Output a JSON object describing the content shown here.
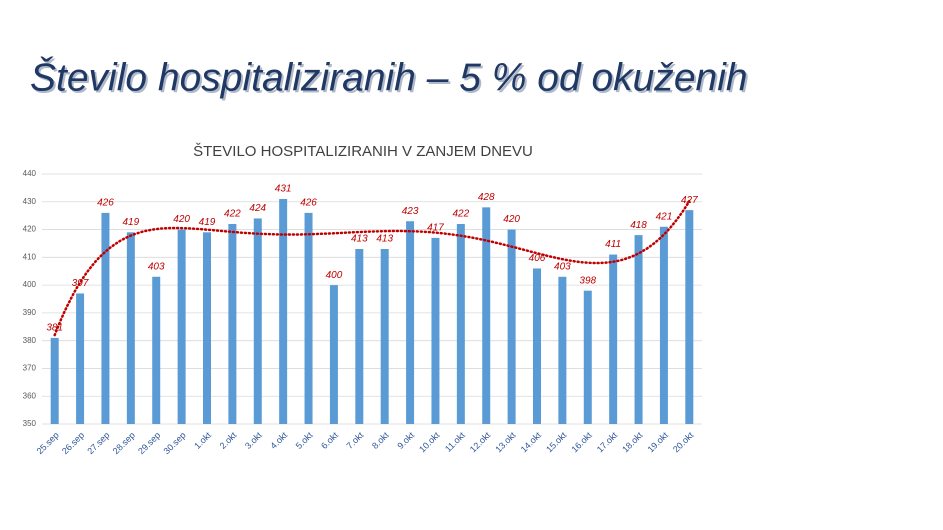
{
  "slide_title": "Število hospitaliziranih – 5 % od okuženih",
  "chart_data": {
    "type": "bar",
    "title": "ŠTEVILO HOSPITALIZIRANIH V ZANJEM DNEVU",
    "categories": [
      "25.sep",
      "26.sep",
      "27.sep",
      "28.sep",
      "29.sep",
      "30.sep",
      "1.okt",
      "2.okt",
      "3.okt",
      "4.okt",
      "5.okt",
      "6.okt",
      "7.okt",
      "8.okt",
      "9.okt",
      "10.okt",
      "11.okt",
      "12.okt",
      "13.okt",
      "14.okt",
      "15.okt",
      "16.okt",
      "17.okt",
      "18.okt",
      "19.okt",
      "20.okt"
    ],
    "values": [
      381,
      397,
      426,
      419,
      403,
      420,
      419,
      422,
      424,
      431,
      426,
      400,
      413,
      413,
      423,
      417,
      422,
      428,
      420,
      406,
      403,
      398,
      411,
      418,
      421,
      427
    ],
    "color": "#5b9bd5",
    "label_color": "#c00000",
    "ylim": [
      350,
      440
    ],
    "yticks": [
      350,
      360,
      370,
      380,
      390,
      400,
      410,
      420,
      430,
      440
    ],
    "grid": true,
    "trendline": "polynomial",
    "trendline_color": "#c00000"
  }
}
